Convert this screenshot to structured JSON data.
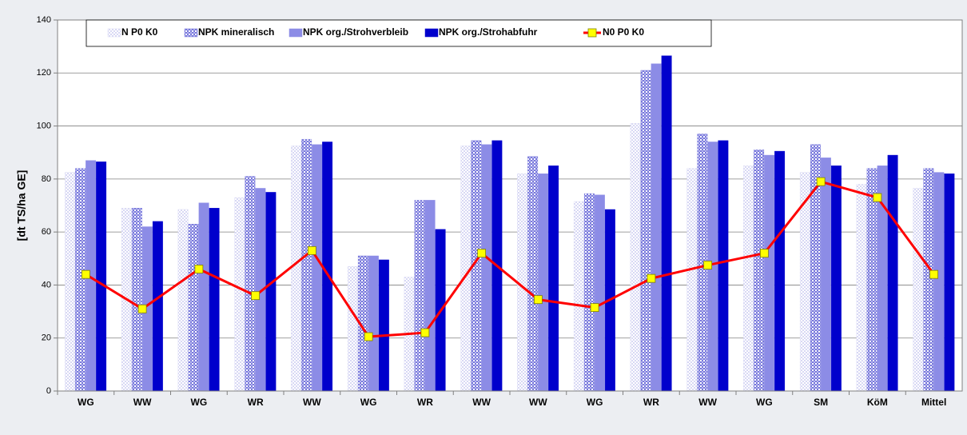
{
  "chart_data": {
    "type": "bar",
    "y_label": "[dt TS/ha GE]",
    "categories": [
      "WG",
      "WW",
      "WG",
      "WR",
      "WW",
      "WG",
      "WR",
      "WW",
      "WW",
      "WG",
      "WR",
      "WW",
      "WG",
      "SM",
      "KöM",
      "Mittel"
    ],
    "series": [
      {
        "name": "N P0 K0",
        "type": "bar",
        "color": "#d8d8f4",
        "values": [
          82.5,
          69,
          68.5,
          73,
          92.5,
          47,
          43,
          92.5,
          82,
          71.5,
          101,
          84,
          85,
          82.5,
          78,
          76.5
        ]
      },
      {
        "name": "NPK mineralisch",
        "type": "bar",
        "color": "#7878dc",
        "values": [
          84,
          69,
          63,
          81,
          95,
          51,
          72,
          94.5,
          88.5,
          74.5,
          121,
          97,
          91,
          93,
          84,
          84
        ]
      },
      {
        "name": "NPK org./Strohverbleib",
        "type": "bar",
        "color": "#8c8ce6",
        "values": [
          87,
          62,
          71,
          76.5,
          93,
          51,
          72,
          93,
          82,
          74,
          123.5,
          94,
          89,
          88,
          85,
          82.5
        ]
      },
      {
        "name": "NPK org./Strohabfuhr",
        "type": "bar",
        "color": "#0000cc",
        "values": [
          86.5,
          64,
          69,
          75,
          94,
          49.5,
          61,
          94.5,
          85,
          68.5,
          126.5,
          94.5,
          90.5,
          85,
          89,
          82
        ]
      },
      {
        "name": "N0 P0 K0",
        "type": "line",
        "color": "#ff0000",
        "marker_color": "#ffff00",
        "values": [
          44,
          31,
          46,
          36,
          53,
          20.5,
          22,
          52,
          34.5,
          31.5,
          42.5,
          47.5,
          52,
          79,
          73,
          44
        ]
      }
    ],
    "ylim": [
      0,
      140
    ],
    "yticks": [
      0,
      20,
      40,
      60,
      80,
      100,
      120,
      140
    ],
    "grid": true
  }
}
